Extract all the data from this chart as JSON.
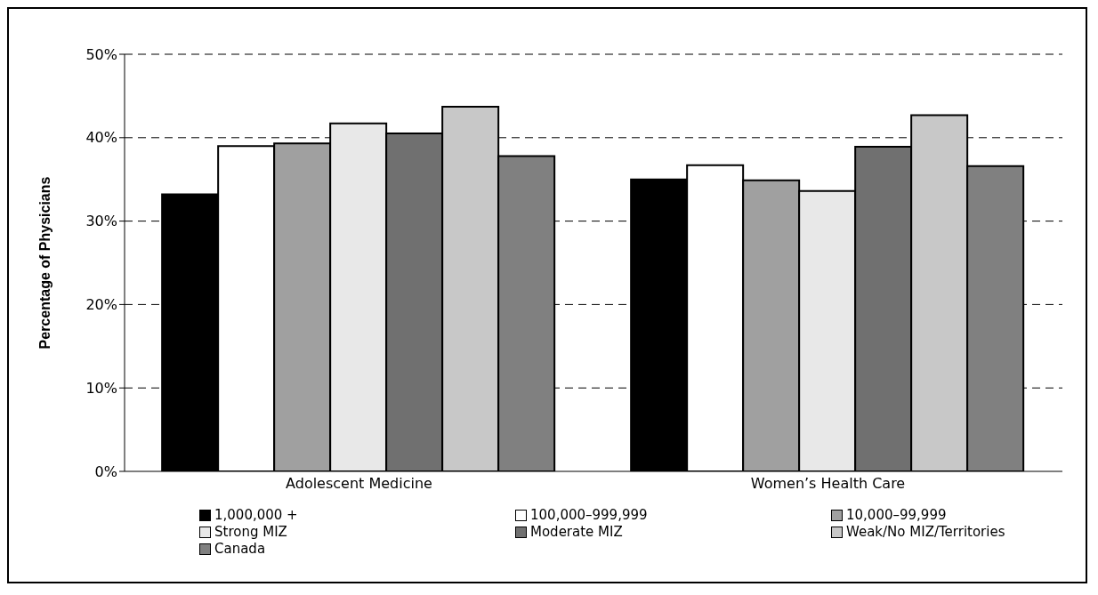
{
  "chart_data": {
    "type": "bar",
    "ylabel": "Percentage of Physicians",
    "categories": [
      "Adolescent Medicine",
      "Women’s Health Care"
    ],
    "series": [
      {
        "name": "1,000,000 +",
        "color": "#000000",
        "values": [
          33.2,
          35.0
        ]
      },
      {
        "name": "100,000–999,999",
        "color": "#ffffff",
        "values": [
          39.0,
          36.7
        ]
      },
      {
        "name": "10,000–99,999",
        "color": "#a0a0a0",
        "values": [
          39.3,
          34.9
        ]
      },
      {
        "name": "Strong MIZ",
        "color": "#e8e8e8",
        "values": [
          41.7,
          33.6
        ]
      },
      {
        "name": "Moderate MIZ",
        "color": "#707070",
        "values": [
          40.5,
          38.9
        ]
      },
      {
        "name": "Weak/No MIZ/Territories",
        "color": "#c8c8c8",
        "values": [
          43.7,
          42.7
        ]
      },
      {
        "name": "Canada",
        "color": "#808080",
        "values": [
          37.8,
          36.6
        ]
      }
    ],
    "ylim": [
      0,
      50
    ],
    "yticks": [
      {
        "value": 0,
        "label": "0%"
      },
      {
        "value": 10,
        "label": "10%"
      },
      {
        "value": 20,
        "label": "20%"
      },
      {
        "value": 30,
        "label": "30%"
      },
      {
        "value": 40,
        "label": "40%"
      },
      {
        "value": 50,
        "label": "50%"
      }
    ],
    "grid": "y",
    "legend": "bottom"
  }
}
